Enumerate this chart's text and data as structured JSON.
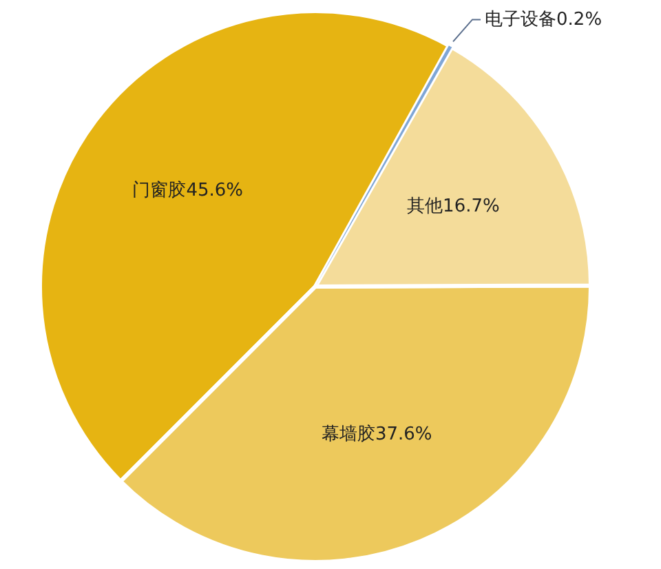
{
  "chart_data": {
    "type": "pie",
    "categories": [
      "电子设备",
      "其他",
      "幕墙胶",
      "门窗胶"
    ],
    "values": [
      0.2,
      16.7,
      37.6,
      45.6
    ],
    "value_labels": [
      "0.2%",
      "16.7%",
      "37.6%",
      "45.6%"
    ],
    "colors": [
      "#7fa6d6",
      "#f4dc9a",
      "#edc95c",
      "#e6b412"
    ]
  }
}
